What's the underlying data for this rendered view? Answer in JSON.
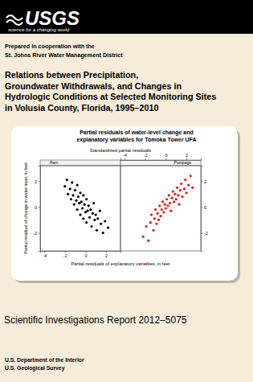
{
  "header": {
    "logo": "USGS",
    "tagline": "science for a changing world"
  },
  "cooperation": [
    "Prepared in cooperation with the",
    "St. Johns River Water Management District"
  ],
  "title": [
    "Relations between Precipitation,",
    "Groundwater Withdrawals, and Changes in",
    "Hydrologic Conditions at Selected Monitoring Sites",
    "in Volusia County, Florida, 1995–2010"
  ],
  "chart_data": {
    "type": "scatter",
    "title": [
      "Partial residuals of water-level change and",
      "explanatory variables for Tomoka Tower UFA"
    ],
    "x2label": "Standardized partial residuals",
    "xlabel": "Partial residuals of explanatory variables, in feet",
    "ylabel": "Partial residual of change in water level, in feet",
    "xlim": [
      -4.4,
      3.4
    ],
    "ylim": [
      -3.4,
      3.2
    ],
    "xticks": [
      -4,
      -2,
      0,
      2
    ],
    "yticks": [
      -2,
      0,
      2
    ],
    "marker": "circle",
    "series": [
      {
        "name": "Rain",
        "color": "#000000",
        "x": [
          -2.0,
          -1.8,
          -1.7,
          -1.5,
          -1.4,
          -1.3,
          -1.2,
          -1.1,
          -1.0,
          -0.9,
          -0.8,
          -0.8,
          -0.7,
          -0.6,
          -0.5,
          -0.5,
          -0.4,
          -0.3,
          -0.2,
          -0.2,
          -0.1,
          0.0,
          0.1,
          0.1,
          0.2,
          0.3,
          0.4,
          0.5,
          0.6,
          0.7,
          0.8,
          0.9,
          1.0,
          1.1,
          1.2,
          1.4,
          1.5,
          1.7,
          1.9,
          2.2
        ],
        "values": [
          1.6,
          2.1,
          1.0,
          1.4,
          0.6,
          1.9,
          0.9,
          0.2,
          1.3,
          0.5,
          1.7,
          -0.2,
          0.8,
          0.3,
          1.1,
          -0.6,
          0.4,
          -0.1,
          0.9,
          -0.9,
          0.2,
          -0.4,
          0.6,
          -1.2,
          -0.3,
          0.1,
          -0.8,
          -0.2,
          -1.5,
          -0.5,
          0.3,
          -1.0,
          -0.6,
          -1.8,
          -0.9,
          -0.3,
          -1.3,
          -2.0,
          -1.1,
          -1.6
        ]
      },
      {
        "name": "Pumpage",
        "color": "#e31a1c",
        "x": [
          -2.2,
          -1.9,
          -1.7,
          -1.5,
          -1.4,
          -1.2,
          -1.1,
          -1.0,
          -0.9,
          -0.8,
          -0.7,
          -0.6,
          -0.5,
          -0.4,
          -0.3,
          -0.2,
          -0.1,
          0.0,
          0.1,
          0.2,
          0.3,
          0.4,
          0.5,
          0.6,
          0.7,
          0.8,
          0.9,
          1.0,
          1.1,
          1.2,
          1.3,
          1.4,
          1.5,
          1.6,
          1.8,
          1.9,
          2.0,
          2.2,
          2.4,
          2.6
        ],
        "values": [
          -2.3,
          -1.5,
          -2.6,
          -1.2,
          -0.6,
          -1.8,
          -0.9,
          -0.2,
          -1.3,
          -0.5,
          -1.0,
          0.1,
          -0.7,
          -0.2,
          0.4,
          -0.4,
          0.2,
          -0.1,
          0.6,
          0.1,
          0.9,
          0.3,
          -0.3,
          0.7,
          1.2,
          0.4,
          1.0,
          0.6,
          1.5,
          0.9,
          0.2,
          1.3,
          1.8,
          0.8,
          1.4,
          2.1,
          1.1,
          1.7,
          2.4,
          1.5
        ]
      }
    ]
  },
  "report": "Scientific Investigations Report 2012–5075",
  "footer": [
    "U.S. Department of the Interior",
    "U.S. Geological Survey"
  ]
}
